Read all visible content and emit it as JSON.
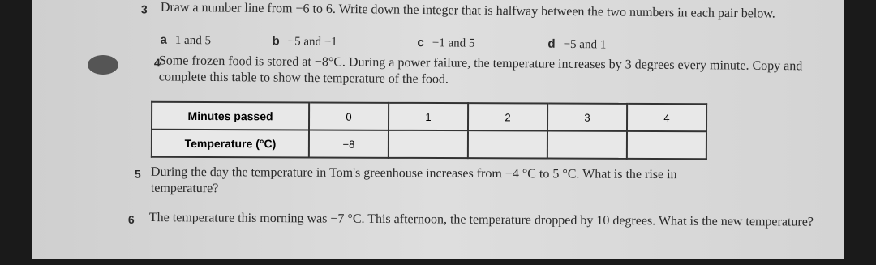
{
  "questions": [
    {
      "number": "3",
      "text": "Draw a number line from −6 to 6. Write down the integer that is halfway between the two numbers in each pair below.",
      "parts": [
        {
          "label": "a",
          "text": "1 and 5"
        },
        {
          "label": "b",
          "text": "−5 and −1"
        },
        {
          "label": "c",
          "text": "−1 and 5"
        },
        {
          "label": "d",
          "text": "−5 and 1"
        }
      ]
    },
    {
      "number": "4",
      "text": "Some frozen food is stored at −8°C. During a power failure, the temperature increases by 3 degrees every minute. Copy and complete this table to show the temperature of the food.",
      "table": {
        "rows": [
          [
            "Minutes passed",
            "0",
            "1",
            "2",
            "3",
            "4"
          ],
          [
            "Temperature (°C)",
            "−8"
          ]
        ]
      }
    },
    {
      "number": "5",
      "text": "During the day the temperature in Tom's greenhouse increases from −4 °C to 5 °C. What is the rise in temperature?"
    },
    {
      "number": "6",
      "text": "The temperature this morning was −7 °C. This afternoon, the temperature dropped by 10 degrees. What is the new temperature?"
    }
  ]
}
